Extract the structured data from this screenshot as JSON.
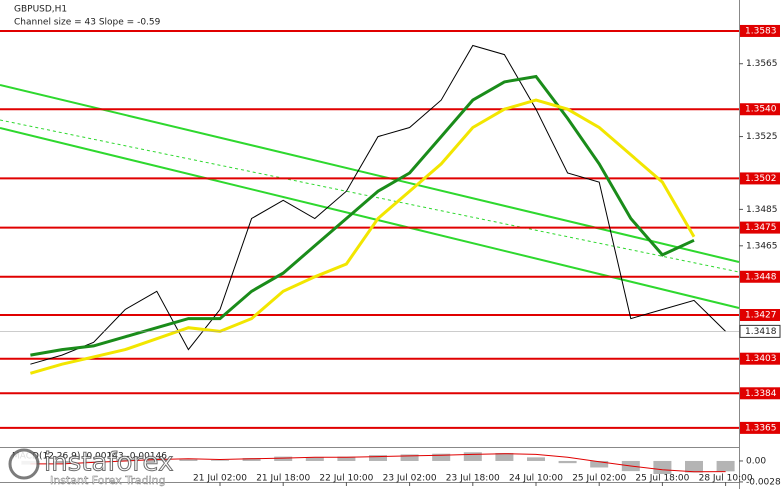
{
  "header": {
    "symbol": "GBPUSD,H1",
    "channel": "Channel size = 43 Slope = -0.59"
  },
  "watermark": {
    "brand": "instaforex",
    "tagline": "Instant Forex Trading"
  },
  "chart_data": [
    {
      "type": "line",
      "categories": [
        null,
        null,
        null,
        null,
        null,
        null,
        "21 Jul 02:00",
        null,
        "21 Jul 18:00",
        null,
        "22 Jul 10:00",
        null,
        "23 Jul 02:00",
        null,
        "23 Jul 18:00",
        null,
        "24 Jul 10:00",
        null,
        "25 Jul 02:00",
        null,
        "25 Jul 18:00",
        null,
        "28 Jul 10:00"
      ],
      "series": [
        {
          "color": "#000000",
          "values": [
            1.34,
            1.3405,
            1.3412,
            1.343,
            1.344,
            1.3408,
            1.343,
            1.348,
            1.349,
            1.348,
            1.3495,
            1.3525,
            1.353,
            1.3545,
            1.3575,
            1.357,
            1.354,
            1.3505,
            1.35,
            1.3425,
            1.343,
            1.3435,
            1.3418
          ]
        },
        {
          "color": "#1a8c1a",
          "values": [
            1.3405,
            1.3408,
            1.341,
            1.3415,
            1.342,
            1.3425,
            1.3425,
            1.344,
            1.345,
            1.3465,
            1.348,
            1.3495,
            1.3505,
            1.3525,
            1.3545,
            1.3555,
            1.3558,
            1.3535,
            1.351,
            1.348,
            1.346,
            1.3468,
            null
          ]
        },
        {
          "color": "#f2e600",
          "values": [
            1.3395,
            1.34,
            1.3404,
            1.3408,
            1.3414,
            1.342,
            1.3418,
            1.3425,
            1.344,
            1.3448,
            1.3455,
            1.348,
            1.3495,
            1.351,
            1.353,
            1.354,
            1.3545,
            1.354,
            1.353,
            1.3515,
            1.35,
            1.347,
            null
          ]
        }
      ],
      "levels": [
        1.3583,
        {
          "value": 1.354,
          "label": "1.3540"
        },
        1.3502,
        1.3475,
        1.3448,
        1.3427,
        1.3403,
        1.3384,
        1.3365
      ],
      "level_color": "#e00000",
      "last": 1.3418,
      "ylim": [
        1.33545,
        1.36
      ],
      "yticks": [
        1.3565,
        1.3525,
        1.3485,
        1.3465
      ]
    },
    {
      "type": "bar",
      "title": "MACD(12,26,9) -0.00143 -0.00146",
      "series": [
        {
          "color": "#b4b4b4",
          "values": [
            -0.0005,
            -0.0003,
            0.0,
            0.0003,
            0.0004,
            0.0002,
            0.0001,
            0.0004,
            0.0006,
            0.0005,
            0.0006,
            0.0008,
            0.0009,
            0.001,
            0.0012,
            0.0011,
            0.0005,
            -0.0003,
            -0.0009,
            -0.0014,
            -0.0018,
            -0.0016,
            -0.00143
          ]
        },
        {
          "type": "line",
          "color": "#e00000",
          "values": [
            -0.0004,
            -0.0004,
            -0.0002,
            0.0,
            0.0002,
            0.0003,
            0.0002,
            0.0003,
            0.0004,
            0.0005,
            0.0005,
            0.0006,
            0.0007,
            0.0008,
            0.0009,
            0.001,
            0.0009,
            0.0005,
            -0.0001,
            -0.0007,
            -0.0012,
            -0.0015,
            -0.00146
          ]
        }
      ],
      "ylim": [
        -0.0029,
        0.00165
      ],
      "yticks": [
        {
          "value": 0,
          "label": "0.00"
        },
        -0.00289
      ]
    }
  ]
}
